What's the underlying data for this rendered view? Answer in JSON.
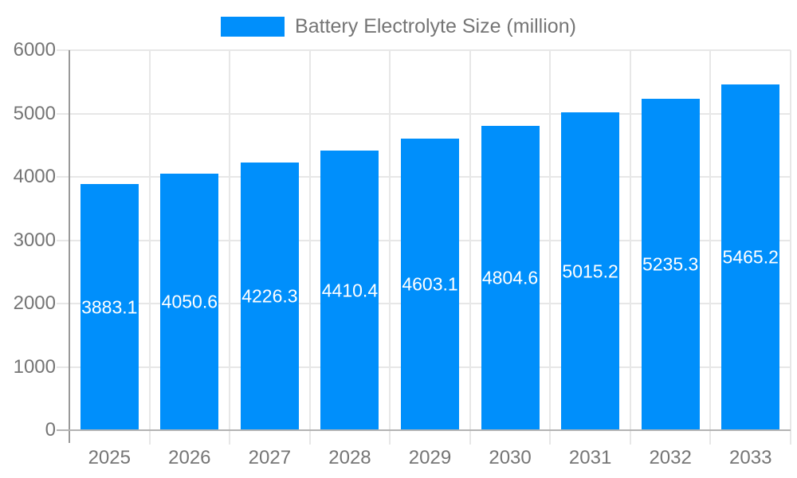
{
  "legend": {
    "series_label": "Battery Electrolyte Size (million)"
  },
  "chart_data": {
    "type": "bar",
    "title": "Battery Electrolyte Size (million)",
    "series_name": "Battery Electrolyte Size (million)",
    "categories": [
      "2025",
      "2026",
      "2027",
      "2028",
      "2029",
      "2030",
      "2031",
      "2032",
      "2033"
    ],
    "values": [
      3883.1,
      4050.6,
      4226.3,
      4410.4,
      4603.1,
      4804.6,
      5015.2,
      5235.3,
      5465.2
    ],
    "value_labels": [
      "3883.1",
      "4050.6",
      "4226.3",
      "4410.4",
      "4603.1",
      "4804.6",
      "5015.2",
      "5235.3",
      "5465.2"
    ],
    "xlabel": "",
    "ylabel": "",
    "ylim": [
      0,
      6000
    ],
    "ytick_step": 1000,
    "ytick_labels": [
      "0",
      "1000",
      "2000",
      "3000",
      "4000",
      "5000",
      "6000"
    ],
    "grid": true,
    "legend_position": "top-center",
    "colors": {
      "bar": "#008FFB",
      "value_label": "#FFFFFF",
      "axis_text": "#757575",
      "gridline": "#E7E7E7",
      "x_axis_line": "#B3B3B3",
      "y_axis_line": "#999999",
      "background": "#FFFFFF"
    }
  }
}
